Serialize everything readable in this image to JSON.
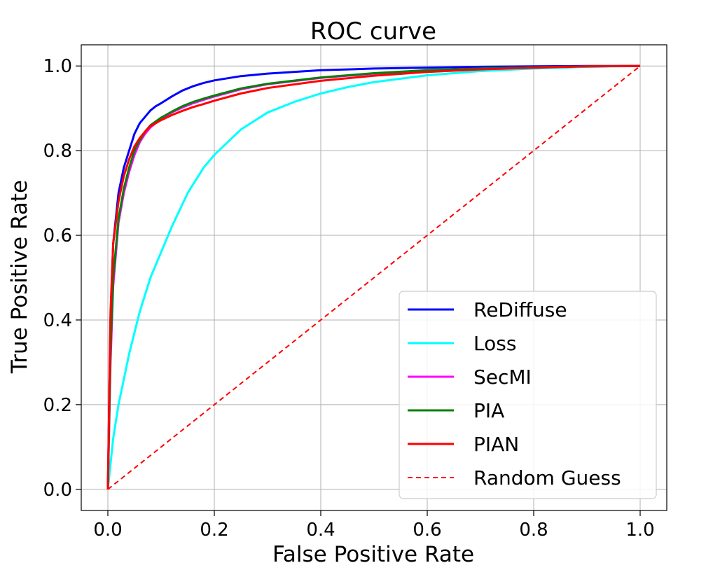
{
  "chart_data": {
    "type": "line",
    "title": "ROC curve",
    "xlabel": "False Positive Rate",
    "ylabel": "True Positive Rate",
    "xlim": [
      -0.05,
      1.05
    ],
    "ylim": [
      -0.05,
      1.05
    ],
    "xticks": [
      0.0,
      0.2,
      0.4,
      0.6,
      0.8,
      1.0
    ],
    "yticks": [
      0.0,
      0.2,
      0.4,
      0.6,
      0.8,
      1.0
    ],
    "tick_labels_x": [
      "0.0",
      "0.2",
      "0.4",
      "0.6",
      "0.8",
      "1.0"
    ],
    "tick_labels_y": [
      "0.0",
      "0.2",
      "0.4",
      "0.6",
      "0.8",
      "1.0"
    ],
    "grid": true,
    "legend_position": "lower-right",
    "series": [
      {
        "name": "ReDiffuse",
        "color": "#0000ff",
        "dashed": false,
        "x": [
          0,
          0.005,
          0.01,
          0.02,
          0.03,
          0.04,
          0.05,
          0.06,
          0.07,
          0.08,
          0.09,
          0.1,
          0.12,
          0.14,
          0.16,
          0.18,
          0.2,
          0.25,
          0.3,
          0.4,
          0.5,
          0.6,
          0.7,
          0.8,
          0.9,
          1.0
        ],
        "y": [
          0,
          0.4,
          0.58,
          0.7,
          0.76,
          0.8,
          0.84,
          0.865,
          0.88,
          0.895,
          0.905,
          0.912,
          0.928,
          0.942,
          0.952,
          0.96,
          0.966,
          0.976,
          0.982,
          0.99,
          0.994,
          0.996,
          0.998,
          0.999,
          1.0,
          1.0
        ]
      },
      {
        "name": "Loss",
        "color": "#00ffff",
        "dashed": false,
        "x": [
          0,
          0.01,
          0.02,
          0.04,
          0.06,
          0.08,
          0.1,
          0.12,
          0.15,
          0.18,
          0.2,
          0.25,
          0.3,
          0.35,
          0.4,
          0.45,
          0.5,
          0.6,
          0.7,
          0.8,
          0.9,
          1.0
        ],
        "y": [
          0,
          0.12,
          0.2,
          0.32,
          0.42,
          0.5,
          0.56,
          0.62,
          0.7,
          0.76,
          0.79,
          0.85,
          0.89,
          0.915,
          0.935,
          0.95,
          0.962,
          0.978,
          0.988,
          0.994,
          0.998,
          1.0
        ]
      },
      {
        "name": "SecMI",
        "color": "#ff00ff",
        "dashed": false,
        "x": [
          0,
          0.005,
          0.01,
          0.02,
          0.03,
          0.04,
          0.05,
          0.06,
          0.07,
          0.08,
          0.1,
          0.12,
          0.14,
          0.16,
          0.18,
          0.2,
          0.25,
          0.3,
          0.4,
          0.5,
          0.6,
          0.7,
          0.8,
          0.9,
          1.0
        ],
        "y": [
          0,
          0.3,
          0.48,
          0.63,
          0.7,
          0.75,
          0.79,
          0.82,
          0.84,
          0.855,
          0.875,
          0.89,
          0.902,
          0.912,
          0.92,
          0.928,
          0.945,
          0.957,
          0.972,
          0.982,
          0.989,
          0.994,
          0.997,
          0.999,
          1.0
        ]
      },
      {
        "name": "PIA",
        "color": "#008000",
        "dashed": false,
        "x": [
          0,
          0.005,
          0.01,
          0.02,
          0.03,
          0.04,
          0.05,
          0.06,
          0.07,
          0.08,
          0.1,
          0.12,
          0.14,
          0.16,
          0.18,
          0.2,
          0.25,
          0.3,
          0.4,
          0.5,
          0.6,
          0.7,
          0.8,
          0.9,
          1.0
        ],
        "y": [
          0,
          0.33,
          0.5,
          0.64,
          0.71,
          0.76,
          0.8,
          0.825,
          0.845,
          0.86,
          0.878,
          0.892,
          0.905,
          0.915,
          0.923,
          0.93,
          0.947,
          0.958,
          0.973,
          0.983,
          0.99,
          0.994,
          0.997,
          0.999,
          1.0
        ]
      },
      {
        "name": "PIAN",
        "color": "#ff0000",
        "dashed": false,
        "x": [
          0,
          0.005,
          0.01,
          0.02,
          0.03,
          0.04,
          0.05,
          0.06,
          0.07,
          0.08,
          0.1,
          0.12,
          0.14,
          0.16,
          0.18,
          0.2,
          0.25,
          0.3,
          0.4,
          0.5,
          0.6,
          0.7,
          0.8,
          0.9,
          1.0
        ],
        "y": [
          0,
          0.42,
          0.58,
          0.68,
          0.74,
          0.78,
          0.81,
          0.83,
          0.845,
          0.858,
          0.872,
          0.884,
          0.894,
          0.903,
          0.91,
          0.918,
          0.935,
          0.948,
          0.965,
          0.977,
          0.986,
          0.992,
          0.996,
          0.999,
          1.0
        ]
      },
      {
        "name": "Random Guess",
        "color": "#ff0000",
        "dashed": true,
        "x": [
          0,
          1.0
        ],
        "y": [
          0,
          1.0
        ]
      }
    ]
  }
}
